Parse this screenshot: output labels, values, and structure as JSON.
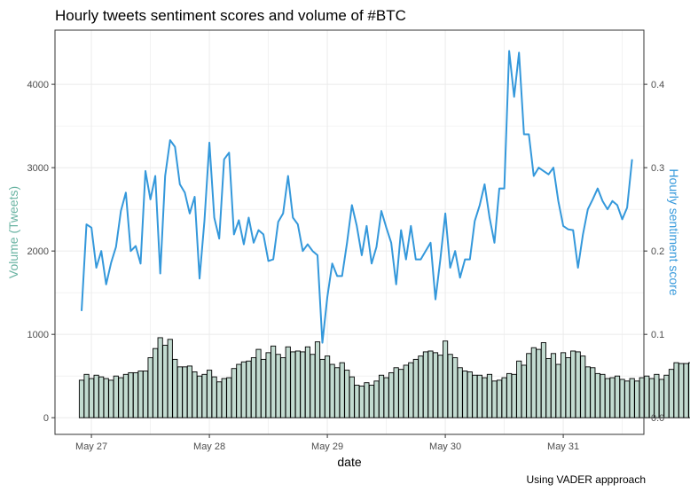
{
  "title": "Hourly tweets sentiment scores and volume of #BTC",
  "caption": "Using  VADER appproach",
  "colors": {
    "bars_fill": "#c2dbd0",
    "bars_stroke": "#000000",
    "line": "#3498db",
    "left_label": "#69b3a2",
    "right_label": "#3498db",
    "grid": "#ebebeb"
  },
  "chart_data": {
    "type": "bar+line",
    "title": "Hourly tweets sentiment scores and volume of #BTC",
    "xlabel": "date",
    "ylabel_left": "Volume (Tweets)",
    "ylabel_right": "Hourly sentiment score",
    "x_start": "May 26 22:00",
    "x_step": "1 hour",
    "x_ticks": [
      "May 27",
      "May 28",
      "May 29",
      "May 30",
      "May 31"
    ],
    "y_left_ticks": [
      "0",
      "1000",
      "2000",
      "3000",
      "4000"
    ],
    "y_right_ticks": [
      "0.0",
      "0.1",
      "0.2",
      "0.3",
      "0.4"
    ],
    "ylim_left": [
      -200,
      4650
    ],
    "ylim_right": [
      -0.02,
      0.465
    ],
    "grid": true,
    "series": [
      {
        "name": "Volume (Tweets)",
        "type": "bar",
        "axis": "left",
        "values": [
          450,
          520,
          470,
          510,
          490,
          470,
          450,
          500,
          480,
          520,
          540,
          540,
          560,
          560,
          720,
          830,
          960,
          870,
          940,
          700,
          610,
          610,
          620,
          550,
          500,
          520,
          570,
          490,
          430,
          470,
          480,
          590,
          640,
          670,
          680,
          720,
          820,
          700,
          780,
          860,
          760,
          720,
          850,
          790,
          800,
          790,
          850,
          760,
          910,
          700,
          740,
          640,
          600,
          660,
          570,
          490,
          390,
          380,
          420,
          390,
          440,
          510,
          480,
          540,
          600,
          580,
          630,
          660,
          700,
          740,
          790,
          800,
          780,
          750,
          920,
          760,
          720,
          600,
          560,
          550,
          510,
          510,
          480,
          520,
          440,
          450,
          480,
          530,
          520,
          680,
          630,
          770,
          840,
          820,
          900,
          710,
          770,
          640,
          780,
          720,
          800,
          790,
          740,
          610,
          600,
          530,
          520,
          470,
          480,
          500,
          460,
          440,
          470,
          440,
          480,
          500,
          470,
          520,
          460,
          510,
          580,
          660,
          650,
          650,
          660,
          240
        ]
      },
      {
        "name": "Hourly sentiment score",
        "type": "line",
        "axis": "right",
        "values": [
          0.128,
          0.232,
          0.228,
          0.18,
          0.2,
          0.16,
          0.186,
          0.205,
          0.248,
          0.27,
          0.2,
          0.206,
          0.185,
          0.296,
          0.262,
          0.29,
          0.173,
          0.29,
          0.333,
          0.325,
          0.28,
          0.27,
          0.245,
          0.265,
          0.167,
          0.236,
          0.33,
          0.24,
          0.215,
          0.31,
          0.318,
          0.22,
          0.237,
          0.208,
          0.24,
          0.21,
          0.225,
          0.22,
          0.188,
          0.19,
          0.235,
          0.245,
          0.29,
          0.24,
          0.232,
          0.2,
          0.208,
          0.2,
          0.195,
          0.09,
          0.145,
          0.185,
          0.17,
          0.17,
          0.21,
          0.255,
          0.23,
          0.195,
          0.23,
          0.185,
          0.205,
          0.248,
          0.228,
          0.21,
          0.16,
          0.225,
          0.19,
          0.23,
          0.19,
          0.19,
          0.2,
          0.21,
          0.142,
          0.19,
          0.245,
          0.18,
          0.2,
          0.168,
          0.19,
          0.19,
          0.236,
          0.255,
          0.28,
          0.24,
          0.21,
          0.275,
          0.275,
          0.44,
          0.385,
          0.438,
          0.34,
          0.34,
          0.29,
          0.3,
          0.296,
          0.292,
          0.3,
          0.26,
          0.23,
          0.226,
          0.225,
          0.18,
          0.22,
          0.25,
          0.262,
          0.275,
          0.26,
          0.25,
          0.26,
          0.255,
          0.238,
          0.252,
          0.31
        ]
      }
    ]
  }
}
